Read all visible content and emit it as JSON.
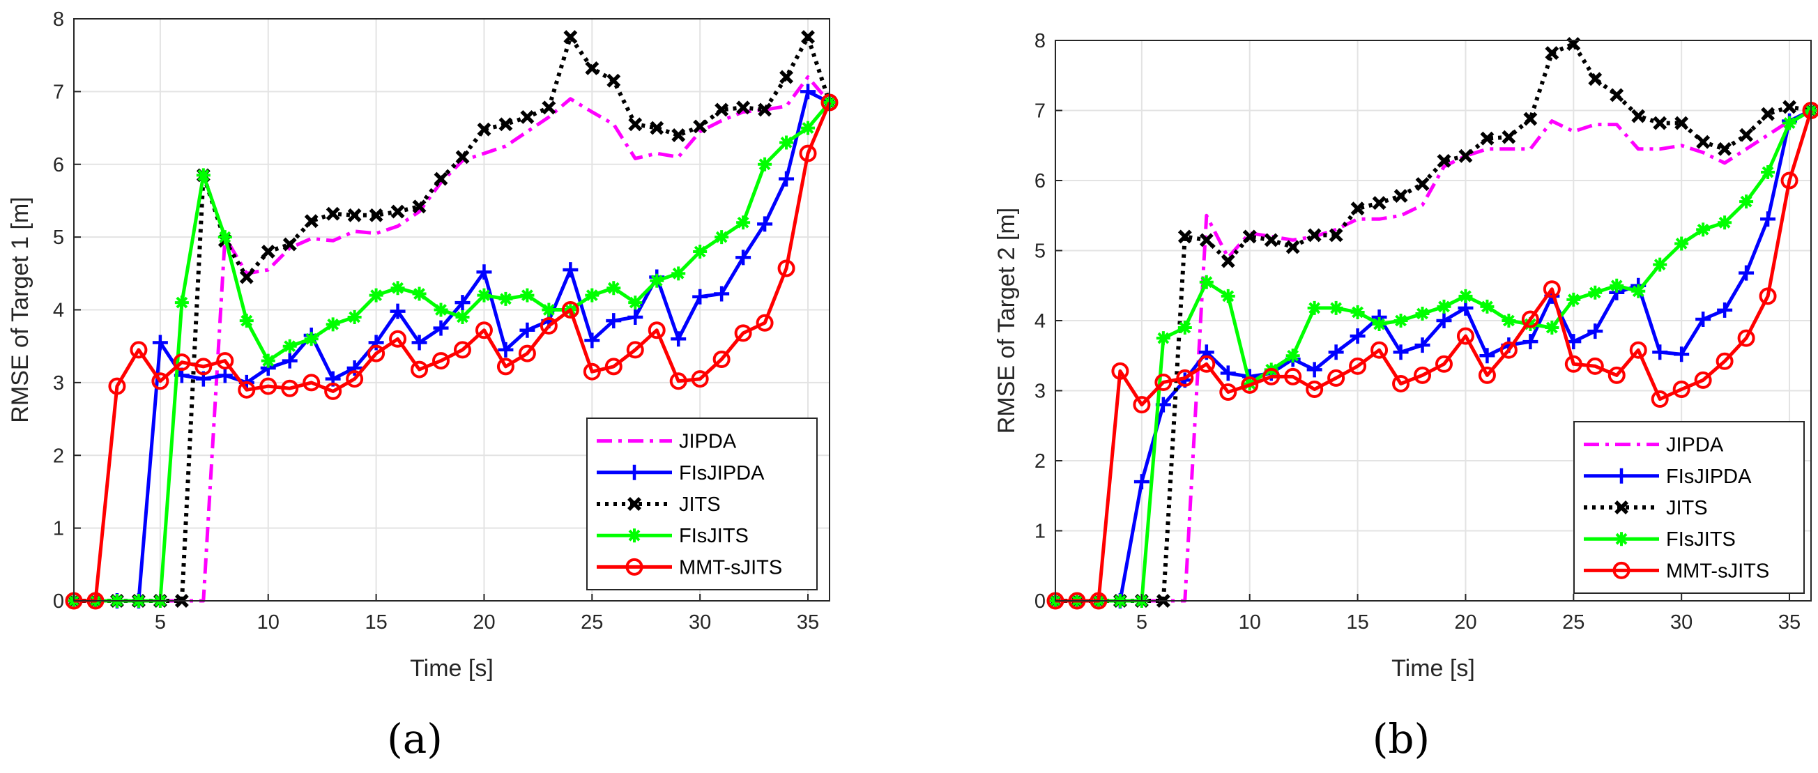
{
  "chart_data": [
    {
      "type": "line",
      "caption": "(a)",
      "xlabel": "Time [s]",
      "ylabel": "RMSE of Target 1 [m]",
      "xlim": [
        1,
        36
      ],
      "ylim": [
        0,
        8
      ],
      "xticks": [
        5,
        10,
        15,
        20,
        25,
        30,
        35
      ],
      "yticks": [
        0,
        1,
        2,
        3,
        4,
        5,
        6,
        7,
        8
      ],
      "grid": true,
      "legend_position": "bottom-right",
      "series": [
        {
          "name": "JIPDA",
          "color": "#ff00ff",
          "style": "dashdot",
          "marker": "none",
          "x": [
            1,
            2,
            3,
            4,
            5,
            6,
            7,
            8,
            9,
            10,
            11,
            12,
            13,
            14,
            15,
            16,
            17,
            18,
            19,
            20,
            21,
            22,
            23,
            24,
            25,
            26,
            27,
            28,
            29,
            30,
            31,
            32,
            33,
            34,
            35,
            36
          ],
          "y": [
            0,
            0,
            0,
            0,
            0,
            0,
            0,
            5.0,
            4.5,
            4.55,
            4.85,
            4.98,
            4.95,
            5.08,
            5.05,
            5.15,
            5.35,
            5.75,
            6.05,
            6.15,
            6.25,
            6.45,
            6.65,
            6.9,
            6.72,
            6.55,
            6.08,
            6.15,
            6.1,
            6.45,
            6.6,
            6.72,
            6.75,
            6.8,
            7.2,
            6.85
          ]
        },
        {
          "name": "FIsJIPDA",
          "color": "#0000ff",
          "style": "solid",
          "marker": "plus",
          "x": [
            1,
            2,
            3,
            4,
            5,
            6,
            7,
            8,
            9,
            10,
            11,
            12,
            13,
            14,
            15,
            16,
            17,
            18,
            19,
            20,
            21,
            22,
            23,
            24,
            25,
            26,
            27,
            28,
            29,
            30,
            31,
            32,
            33,
            34,
            35,
            36
          ],
          "y": [
            0,
            0,
            0,
            0,
            3.55,
            3.1,
            3.05,
            3.1,
            3.0,
            3.2,
            3.3,
            3.65,
            3.05,
            3.2,
            3.55,
            3.98,
            3.55,
            3.75,
            4.1,
            4.52,
            3.45,
            3.72,
            3.85,
            4.55,
            3.58,
            3.85,
            3.9,
            4.45,
            3.6,
            4.18,
            4.22,
            4.72,
            5.18,
            5.8,
            7.0,
            6.85
          ]
        },
        {
          "name": "JITS",
          "color": "#000000",
          "style": "dotted",
          "marker": "x",
          "x": [
            1,
            2,
            3,
            4,
            5,
            6,
            7,
            8,
            9,
            10,
            11,
            12,
            13,
            14,
            15,
            16,
            17,
            18,
            19,
            20,
            21,
            22,
            23,
            24,
            25,
            26,
            27,
            28,
            29,
            30,
            31,
            32,
            33,
            34,
            35,
            36
          ],
          "y": [
            0,
            0,
            0,
            0,
            0,
            0,
            5.85,
            4.95,
            4.45,
            4.8,
            4.9,
            5.22,
            5.32,
            5.3,
            5.3,
            5.35,
            5.42,
            5.8,
            6.1,
            6.48,
            6.55,
            6.65,
            6.78,
            7.75,
            7.32,
            7.15,
            6.55,
            6.5,
            6.4,
            6.52,
            6.75,
            6.78,
            6.75,
            7.2,
            7.75,
            6.85
          ]
        },
        {
          "name": "FIsJITS",
          "color": "#00ff00",
          "style": "solid",
          "marker": "asterisk",
          "x": [
            1,
            2,
            3,
            4,
            5,
            6,
            7,
            8,
            9,
            10,
            11,
            12,
            13,
            14,
            15,
            16,
            17,
            18,
            19,
            20,
            21,
            22,
            23,
            24,
            25,
            26,
            27,
            28,
            29,
            30,
            31,
            32,
            33,
            34,
            35,
            36
          ],
          "y": [
            0,
            0,
            0,
            0,
            0,
            4.1,
            5.85,
            5.0,
            3.85,
            3.3,
            3.5,
            3.6,
            3.8,
            3.9,
            4.2,
            4.3,
            4.22,
            4.0,
            3.9,
            4.2,
            4.15,
            4.2,
            4.0,
            4.0,
            4.2,
            4.3,
            4.1,
            4.4,
            4.5,
            4.8,
            5.0,
            5.2,
            6.0,
            6.3,
            6.5,
            6.85
          ]
        },
        {
          "name": "MMT-sJITS",
          "color": "#ff0000",
          "style": "solid",
          "marker": "circle",
          "x": [
            1,
            2,
            3,
            4,
            5,
            6,
            7,
            8,
            9,
            10,
            11,
            12,
            13,
            14,
            15,
            16,
            17,
            18,
            19,
            20,
            21,
            22,
            23,
            24,
            25,
            26,
            27,
            28,
            29,
            30,
            31,
            32,
            33,
            34,
            35,
            36
          ],
          "y": [
            0,
            0,
            2.95,
            3.45,
            3.02,
            3.28,
            3.22,
            3.3,
            2.9,
            2.95,
            2.92,
            3.0,
            2.88,
            3.05,
            3.4,
            3.6,
            3.18,
            3.3,
            3.45,
            3.72,
            3.22,
            3.4,
            3.78,
            4.0,
            3.15,
            3.22,
            3.45,
            3.72,
            3.02,
            3.05,
            3.32,
            3.68,
            3.82,
            4.57,
            6.15,
            6.85
          ]
        }
      ]
    },
    {
      "type": "line",
      "caption": "(b)",
      "xlabel": "Time [s]",
      "ylabel": "RMSE of Target 2 [m]",
      "xlim": [
        1,
        36
      ],
      "ylim": [
        0,
        8
      ],
      "xticks": [
        5,
        10,
        15,
        20,
        25,
        30,
        35
      ],
      "yticks": [
        0,
        1,
        2,
        3,
        4,
        5,
        6,
        7,
        8
      ],
      "grid": true,
      "legend_position": "bottom-right",
      "series": [
        {
          "name": "JIPDA",
          "color": "#ff00ff",
          "style": "dashdot",
          "marker": "none",
          "x": [
            1,
            2,
            3,
            4,
            5,
            6,
            7,
            8,
            9,
            10,
            11,
            12,
            13,
            14,
            15,
            16,
            17,
            18,
            19,
            20,
            21,
            22,
            23,
            24,
            25,
            26,
            27,
            28,
            29,
            30,
            31,
            32,
            33,
            34,
            35,
            36
          ],
          "y": [
            0,
            0,
            0,
            0,
            0,
            0,
            0,
            5.5,
            4.9,
            5.25,
            5.2,
            5.15,
            5.2,
            5.3,
            5.45,
            5.45,
            5.5,
            5.65,
            6.2,
            6.35,
            6.45,
            6.45,
            6.45,
            6.85,
            6.7,
            6.8,
            6.8,
            6.45,
            6.45,
            6.5,
            6.4,
            6.25,
            6.45,
            6.65,
            6.85,
            7.0
          ]
        },
        {
          "name": "FIsJIPDA",
          "color": "#0000ff",
          "style": "solid",
          "marker": "plus",
          "x": [
            1,
            2,
            3,
            4,
            5,
            6,
            7,
            8,
            9,
            10,
            11,
            12,
            13,
            14,
            15,
            16,
            17,
            18,
            19,
            20,
            21,
            22,
            23,
            24,
            25,
            26,
            27,
            28,
            29,
            30,
            31,
            32,
            33,
            34,
            35,
            36
          ],
          "y": [
            0,
            0,
            0,
            0,
            1.7,
            2.8,
            3.15,
            3.55,
            3.25,
            3.2,
            3.25,
            3.45,
            3.3,
            3.55,
            3.78,
            4.05,
            3.55,
            3.65,
            4.0,
            4.18,
            3.5,
            3.65,
            3.7,
            4.35,
            3.7,
            3.85,
            4.4,
            4.5,
            3.55,
            3.52,
            4.02,
            4.15,
            4.68,
            5.45,
            6.85,
            7.0
          ]
        },
        {
          "name": "JITS",
          "color": "#000000",
          "style": "dotted",
          "marker": "x",
          "x": [
            1,
            2,
            3,
            4,
            5,
            6,
            7,
            8,
            9,
            10,
            11,
            12,
            13,
            14,
            15,
            16,
            17,
            18,
            19,
            20,
            21,
            22,
            23,
            24,
            25,
            26,
            27,
            28,
            29,
            30,
            31,
            32,
            33,
            34,
            35,
            36
          ],
          "y": [
            0,
            0,
            0,
            0,
            0,
            0,
            5.2,
            5.15,
            4.85,
            5.2,
            5.15,
            5.05,
            5.22,
            5.22,
            5.6,
            5.68,
            5.78,
            5.95,
            6.28,
            6.35,
            6.6,
            6.62,
            6.88,
            7.82,
            7.95,
            7.45,
            7.22,
            6.92,
            6.82,
            6.82,
            6.55,
            6.45,
            6.65,
            6.95,
            7.05,
            7.0
          ]
        },
        {
          "name": "FIsJITS",
          "color": "#00ff00",
          "style": "solid",
          "marker": "asterisk",
          "x": [
            1,
            2,
            3,
            4,
            5,
            6,
            7,
            8,
            9,
            10,
            11,
            12,
            13,
            14,
            15,
            16,
            17,
            18,
            19,
            20,
            21,
            22,
            23,
            24,
            25,
            26,
            27,
            28,
            29,
            30,
            31,
            32,
            33,
            34,
            35,
            36
          ],
          "y": [
            0,
            0,
            0,
            0,
            0,
            3.75,
            3.9,
            4.55,
            4.35,
            3.1,
            3.3,
            3.5,
            4.18,
            4.18,
            4.12,
            3.95,
            4.0,
            4.1,
            4.2,
            4.35,
            4.2,
            4.0,
            3.95,
            3.9,
            4.3,
            4.4,
            4.5,
            4.42,
            4.8,
            5.1,
            5.3,
            5.4,
            5.7,
            6.12,
            6.82,
            7.0
          ]
        },
        {
          "name": "MMT-sJITS",
          "color": "#ff0000",
          "style": "solid",
          "marker": "circle",
          "x": [
            1,
            2,
            3,
            4,
            5,
            6,
            7,
            8,
            9,
            10,
            11,
            12,
            13,
            14,
            15,
            16,
            17,
            18,
            19,
            20,
            21,
            22,
            23,
            24,
            25,
            26,
            27,
            28,
            29,
            30,
            31,
            32,
            33,
            34,
            35,
            36
          ],
          "y": [
            0,
            0,
            0,
            3.28,
            2.8,
            3.12,
            3.18,
            3.38,
            2.98,
            3.08,
            3.2,
            3.2,
            3.02,
            3.18,
            3.35,
            3.58,
            3.1,
            3.22,
            3.38,
            3.78,
            3.22,
            3.58,
            4.02,
            4.45,
            3.38,
            3.35,
            3.22,
            3.58,
            2.88,
            3.02,
            3.15,
            3.42,
            3.75,
            4.35,
            6.0,
            7.0
          ]
        }
      ]
    }
  ]
}
